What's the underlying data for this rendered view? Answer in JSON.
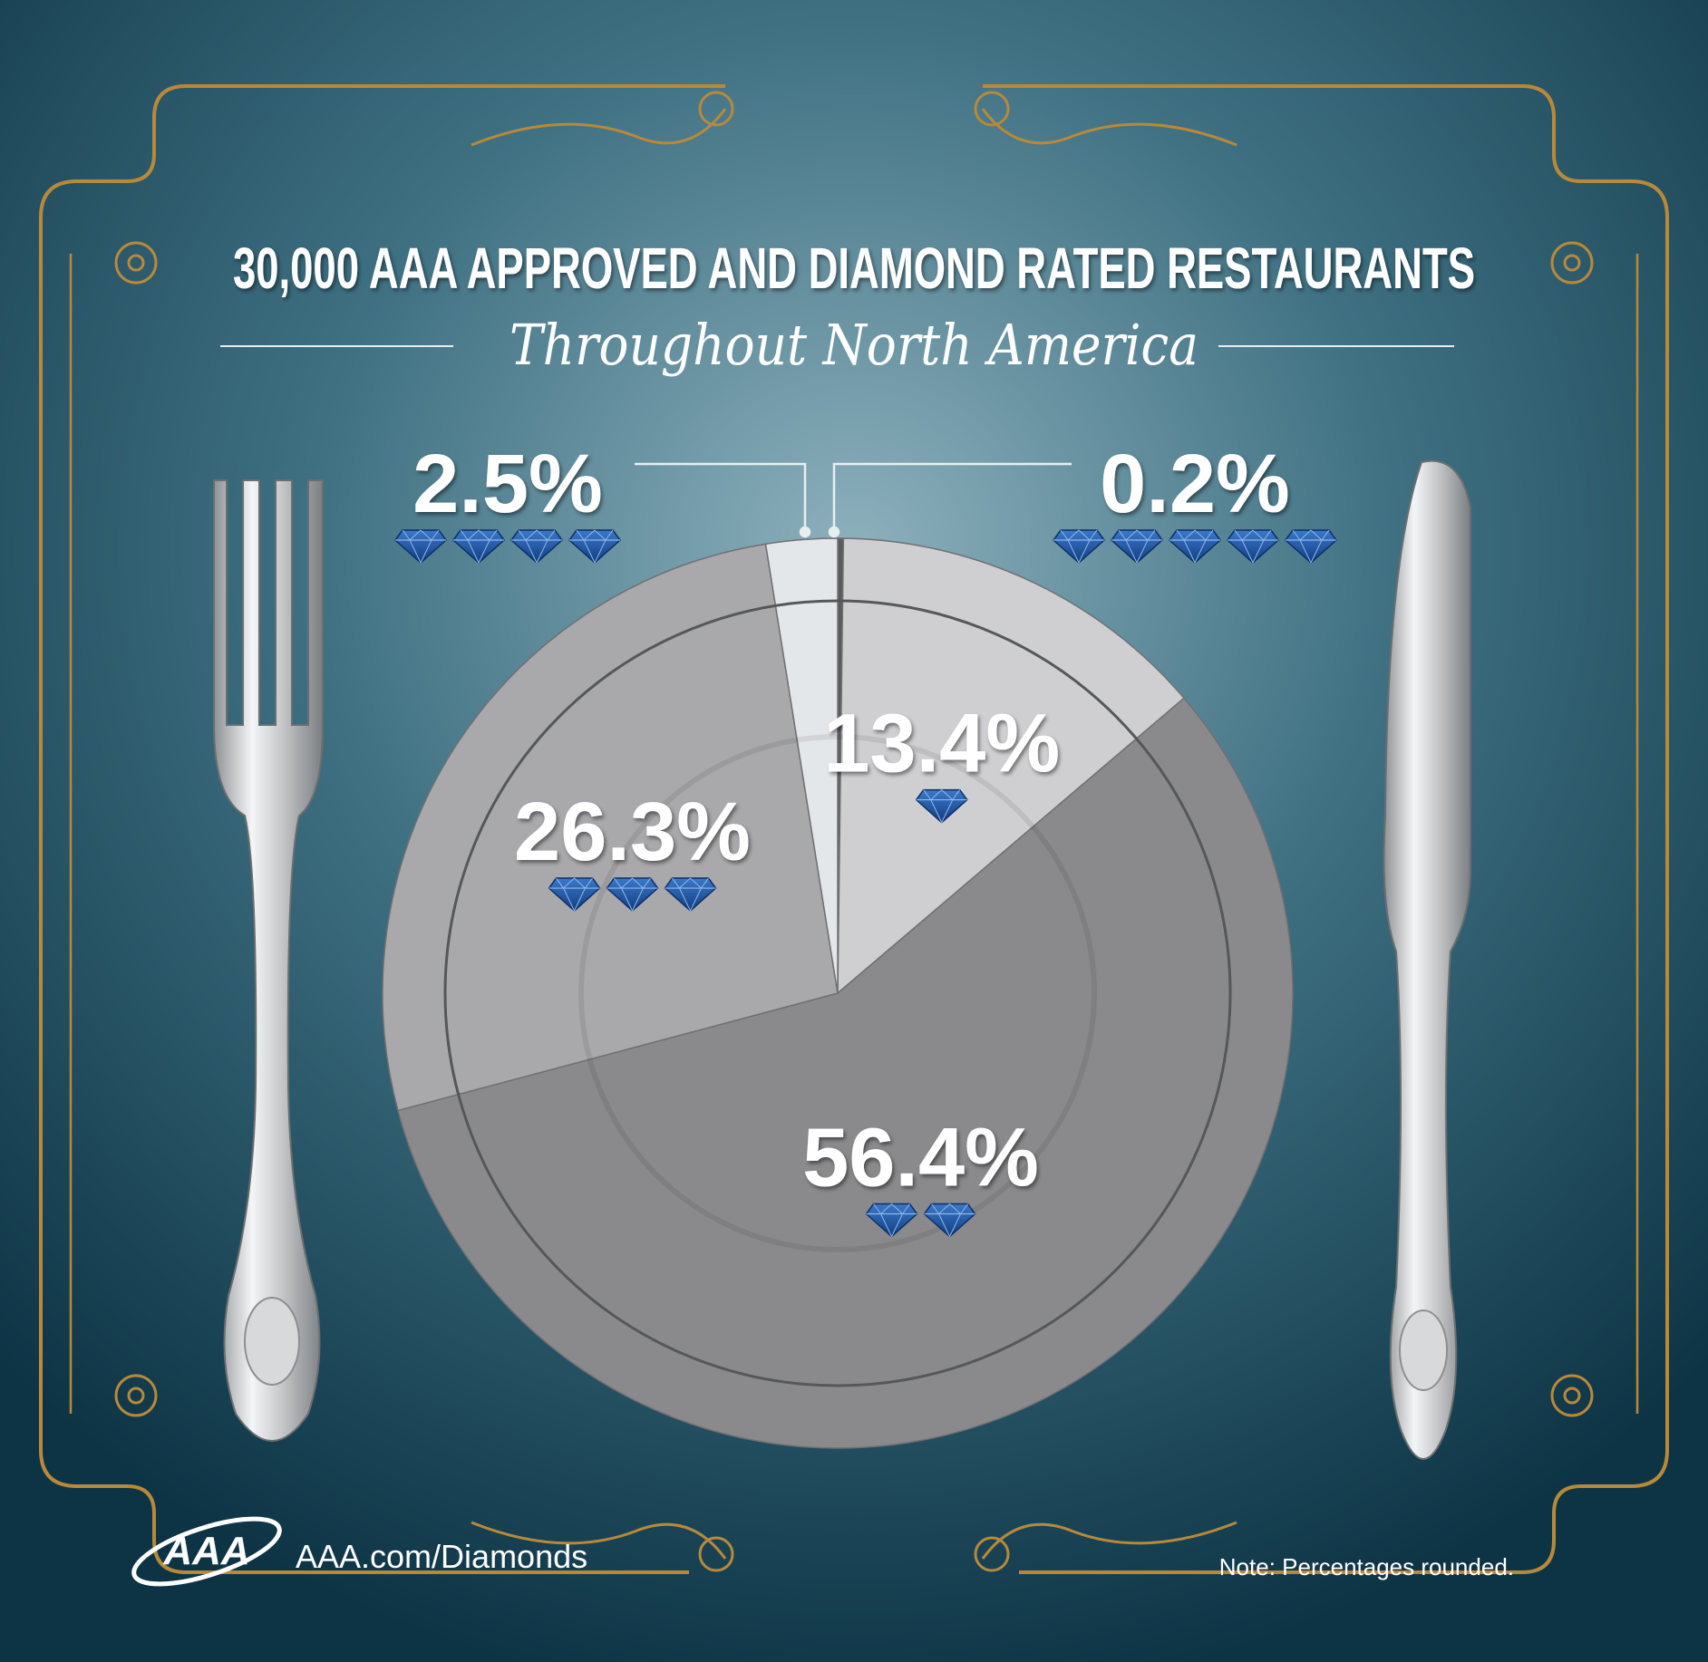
{
  "header": {
    "title": "30,000 AAA APPROVED AND DIAMOND RATED RESTAURANTS",
    "subtitle": "Throughout North America"
  },
  "footer": {
    "logo_text": "AAA",
    "url": "AAA.com/Diamonds",
    "note": "Note: Percentages rounded."
  },
  "icons": {
    "diamond": "diamond-icon",
    "fork": "fork-icon",
    "knife": "knife-icon",
    "logo": "aaa-logo-icon"
  },
  "colors": {
    "background_center": "#7fa6b3",
    "background_edge": "#0d3445",
    "gold": "#b8893a",
    "diamond": "#1f5aa6",
    "text": "#ffffff"
  },
  "chart_data": {
    "type": "pie",
    "title": "30,000 AAA APPROVED AND DIAMOND RATED RESTAURANTS",
    "subtitle": "Throughout North America",
    "unit": "%",
    "slices": [
      {
        "label": "0.2%",
        "value": 0.2,
        "diamonds": 5,
        "color": "#5b5b5e"
      },
      {
        "label": "13.4%",
        "value": 13.4,
        "diamonds": 1,
        "color": "#cfcfd2"
      },
      {
        "label": "56.4%",
        "value": 56.4,
        "diamonds": 2,
        "color": "#8a8a8c"
      },
      {
        "label": "26.3%",
        "value": 26.3,
        "diamonds": 3,
        "color": "#a9a9ac"
      },
      {
        "label": "2.5%",
        "value": 2.5,
        "diamonds": 4,
        "color": "#e4e7ea"
      }
    ],
    "note": "Note: Percentages rounded."
  }
}
